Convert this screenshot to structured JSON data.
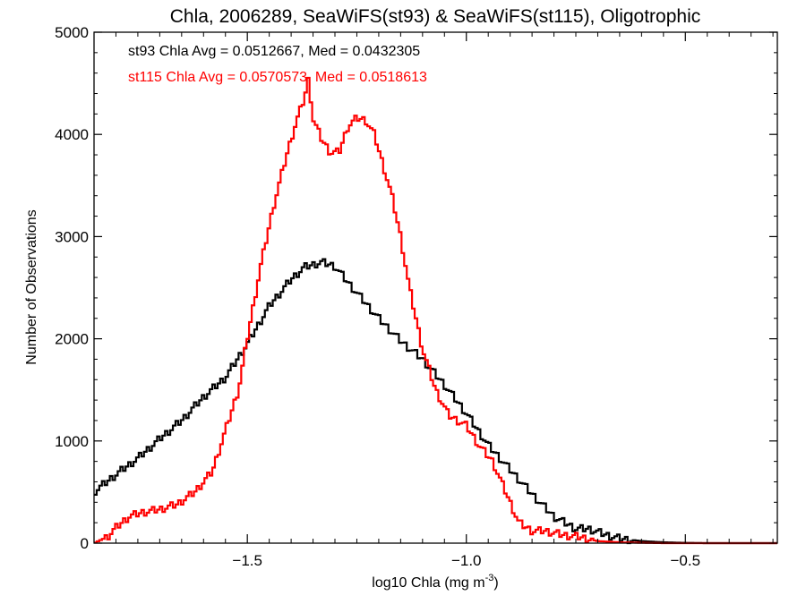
{
  "chart_data": {
    "type": "line",
    "title": "Chla, 2006289, SeaWiFS(st93) & SeaWiFS(st115), Oligotrophic",
    "xlabel": "log10 Chla (mg m",
    "xlabel_sup": "-3",
    "xlabel_end": ")",
    "ylabel": "Number of Observations",
    "xlim": [
      -1.85,
      -0.29
    ],
    "ylim": [
      0,
      5000
    ],
    "x_ticks": [
      -1.5,
      -1.0,
      -0.5
    ],
    "x_tick_labels": [
      "−1.5",
      "−1.0",
      "−0.5"
    ],
    "y_ticks": [
      0,
      1000,
      2000,
      3000,
      4000,
      5000
    ],
    "y_tick_labels": [
      "0",
      "1000",
      "2000",
      "3000",
      "4000",
      "5000"
    ],
    "grid": false,
    "annotations": [
      {
        "text": "st93 Chla Avg = 0.0512667, Med = 0.0432305",
        "color": "#000000"
      },
      {
        "text": "st115 Chla Avg = 0.0570573, Med = 0.0518613",
        "color": "#ff0000"
      }
    ],
    "series": [
      {
        "color": "#000000",
        "x": [
          -1.85,
          -1.8,
          -1.75,
          -1.7,
          -1.65,
          -1.6,
          -1.55,
          -1.5,
          -1.45,
          -1.4,
          -1.37,
          -1.33,
          -1.3,
          -1.27,
          -1.24,
          -1.2,
          -1.15,
          -1.1,
          -1.05,
          -1.0,
          -0.95,
          -0.9,
          -0.85,
          -0.8,
          -0.75,
          -0.72,
          -0.68,
          -0.65,
          -0.6,
          -0.55,
          -0.5,
          -0.45,
          -0.4,
          -0.35,
          -0.29
        ],
        "y": [
          500,
          670,
          830,
          1020,
          1200,
          1430,
          1620,
          1950,
          2320,
          2580,
          2700,
          2750,
          2710,
          2550,
          2400,
          2200,
          1980,
          1800,
          1550,
          1270,
          960,
          720,
          480,
          260,
          140,
          140,
          80,
          45,
          20,
          8,
          3,
          0,
          0,
          0,
          0
        ]
      },
      {
        "color": "#ff0000",
        "x": [
          -1.85,
          -1.82,
          -1.8,
          -1.77,
          -1.74,
          -1.7,
          -1.66,
          -1.62,
          -1.58,
          -1.55,
          -1.52,
          -1.5,
          -1.47,
          -1.44,
          -1.41,
          -1.39,
          -1.37,
          -1.36,
          -1.35,
          -1.33,
          -1.31,
          -1.29,
          -1.27,
          -1.25,
          -1.23,
          -1.21,
          -1.19,
          -1.17,
          -1.15,
          -1.13,
          -1.1,
          -1.07,
          -1.04,
          -1.0,
          -0.97,
          -0.94,
          -0.91,
          -0.88,
          -0.85,
          -0.82,
          -0.78,
          -0.74,
          -0.7,
          -0.65,
          -0.6,
          -0.55,
          -0.5,
          -0.45,
          -0.4,
          -0.35,
          -0.29
        ],
        "y": [
          0,
          60,
          150,
          260,
          300,
          330,
          380,
          500,
          700,
          1100,
          1500,
          2000,
          2700,
          3300,
          3800,
          4100,
          4350,
          4550,
          4150,
          3950,
          3820,
          3830,
          4080,
          4160,
          4140,
          4000,
          3700,
          3400,
          3000,
          2500,
          1900,
          1500,
          1250,
          1150,
          950,
          800,
          500,
          200,
          120,
          120,
          80,
          60,
          20,
          8,
          3,
          0,
          0,
          0,
          0,
          0,
          0
        ]
      }
    ]
  }
}
